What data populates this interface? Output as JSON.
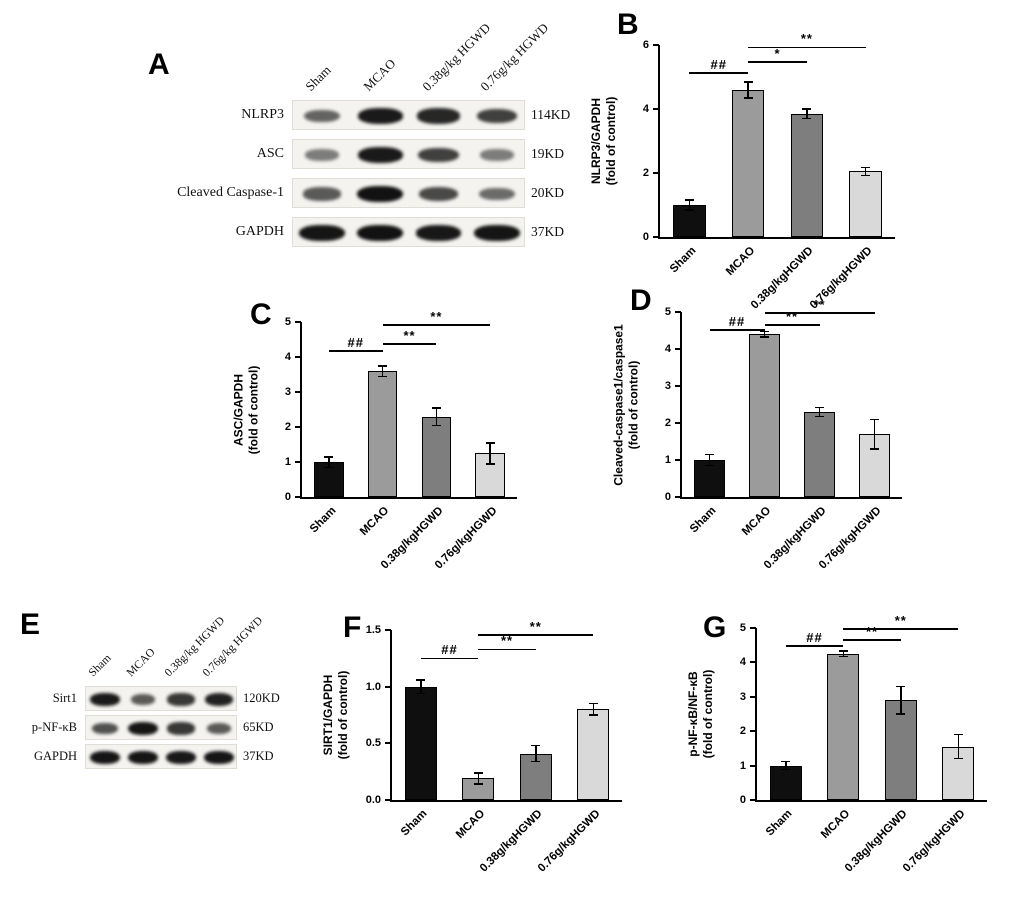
{
  "figure": {
    "background": "#ffffff",
    "bar_colors": [
      "#0f0f0f",
      "#9b9b9b",
      "#7e7e7e",
      "#d9d9d9"
    ]
  },
  "blots": [
    {
      "panel": "A",
      "lanes": [
        "Sham",
        "MCAO",
        "0.38g/kg HGWD",
        "0.76g/kg HGWD"
      ],
      "rows": [
        {
          "protein": "NLRP3",
          "size": "114KD",
          "intensities": [
            0.5,
            0.92,
            0.85,
            0.7
          ]
        },
        {
          "protein": "ASC",
          "size": "19KD",
          "intensities": [
            0.35,
            0.92,
            0.7,
            0.35
          ]
        },
        {
          "protein": "Cleaved Caspase-1",
          "size": "20KD",
          "intensities": [
            0.55,
            0.97,
            0.65,
            0.45
          ]
        },
        {
          "protein": "GAPDH",
          "size": "37KD",
          "intensities": [
            0.95,
            0.97,
            0.93,
            0.95
          ]
        }
      ]
    },
    {
      "panel": "E",
      "lanes": [
        "Sham",
        "MCAO",
        "0.38g/kg HGWD",
        "0.76g/kg HGWD"
      ],
      "rows": [
        {
          "protein": "Sirt1",
          "size": "120KD",
          "intensities": [
            0.92,
            0.55,
            0.75,
            0.88
          ]
        },
        {
          "protein": "p-NF-κB",
          "size": "65KD",
          "intensities": [
            0.6,
            0.95,
            0.75,
            0.55
          ]
        },
        {
          "protein": "GAPDH",
          "size": "37KD",
          "intensities": [
            0.95,
            0.95,
            0.93,
            0.95
          ]
        }
      ]
    }
  ],
  "chart_data": [
    {
      "panel": "B",
      "type": "bar",
      "categories": [
        "Sham",
        "MCAO",
        "0.38g/kgHGWD",
        "0.76g/kgHGWD"
      ],
      "values": [
        1.0,
        4.6,
        3.85,
        2.05
      ],
      "errors": [
        0.15,
        0.25,
        0.15,
        0.12
      ],
      "ylabel_lines": [
        "NLRP3/GAPDH",
        "(fold of control)"
      ],
      "ylim": [
        0,
        6
      ],
      "yticks": [
        "0",
        "2",
        "4",
        "6"
      ],
      "annotations": [
        {
          "label": "##",
          "from": 0,
          "to": 1,
          "y": 5.1
        },
        {
          "label": "*",
          "from": 1,
          "to": 2,
          "y": 5.45
        },
        {
          "label": "**",
          "from": 1,
          "to": 3,
          "y": 5.9
        }
      ]
    },
    {
      "panel": "C",
      "type": "bar",
      "categories": [
        "Sham",
        "MCAO",
        "0.38g/kgHGWD",
        "0.76g/kgHGWD"
      ],
      "values": [
        1.0,
        3.6,
        2.3,
        1.25
      ],
      "errors": [
        0.15,
        0.15,
        0.25,
        0.3
      ],
      "ylabel_lines": [
        "ASC/GAPDH",
        "(fold of control)"
      ],
      "ylim": [
        0,
        5
      ],
      "yticks": [
        "0",
        "1",
        "2",
        "3",
        "4",
        "5"
      ],
      "annotations": [
        {
          "label": "##",
          "from": 0,
          "to": 1,
          "y": 4.15
        },
        {
          "label": "**",
          "from": 1,
          "to": 2,
          "y": 4.35
        },
        {
          "label": "**",
          "from": 1,
          "to": 3,
          "y": 4.9
        }
      ]
    },
    {
      "panel": "D",
      "type": "bar",
      "categories": [
        "Sham",
        "MCAO",
        "0.38g/kgHGWD",
        "0.76g/kgHGWD"
      ],
      "values": [
        1.0,
        4.4,
        2.3,
        1.7
      ],
      "errors": [
        0.15,
        0.08,
        0.12,
        0.4
      ],
      "ylabel_lines": [
        "Cleaved-caspase1/caspase1",
        "(fold of control)"
      ],
      "ylim": [
        0,
        5
      ],
      "yticks": [
        "0",
        "1",
        "2",
        "3",
        "4",
        "5"
      ],
      "annotations": [
        {
          "label": "##",
          "from": 0,
          "to": 1,
          "y": 4.5
        },
        {
          "label": "**",
          "from": 1,
          "to": 2,
          "y": 4.62
        },
        {
          "label": "**",
          "from": 1,
          "to": 3,
          "y": 4.95
        }
      ]
    },
    {
      "panel": "F",
      "type": "bar",
      "categories": [
        "Sham",
        "MCAO",
        "0.38g/kgHGWD",
        "0.76g/kgHGWD"
      ],
      "values": [
        1.0,
        0.19,
        0.41,
        0.8
      ],
      "errors": [
        0.06,
        0.05,
        0.07,
        0.05
      ],
      "ylabel_lines": [
        "SIRT1/GAPDH",
        "(fold of control)"
      ],
      "ylim": [
        0,
        1.5
      ],
      "yticks": [
        "0.0",
        "0.5",
        "1.0",
        "1.5"
      ],
      "annotations": [
        {
          "label": "##",
          "from": 0,
          "to": 1,
          "y": 1.24
        },
        {
          "label": "**",
          "from": 1,
          "to": 2,
          "y": 1.32
        },
        {
          "label": "**",
          "from": 1,
          "to": 3,
          "y": 1.45
        }
      ]
    },
    {
      "panel": "G",
      "type": "bar",
      "categories": [
        "Sham",
        "MCAO",
        "0.38g/kgHGWD",
        "0.76g/kgHGWD"
      ],
      "values": [
        1.0,
        4.25,
        2.9,
        1.55
      ],
      "errors": [
        0.12,
        0.08,
        0.4,
        0.35
      ],
      "ylabel_lines": [
        "p-NF-κB/NF-κB",
        "(fold of control)"
      ],
      "ylim": [
        0,
        5
      ],
      "yticks": [
        "0",
        "1",
        "2",
        "3",
        "4",
        "5"
      ],
      "annotations": [
        {
          "label": "##",
          "from": 0,
          "to": 1,
          "y": 4.45
        },
        {
          "label": "**",
          "from": 1,
          "to": 2,
          "y": 4.62
        },
        {
          "label": "**",
          "from": 1,
          "to": 3,
          "y": 4.95
        }
      ]
    }
  ]
}
